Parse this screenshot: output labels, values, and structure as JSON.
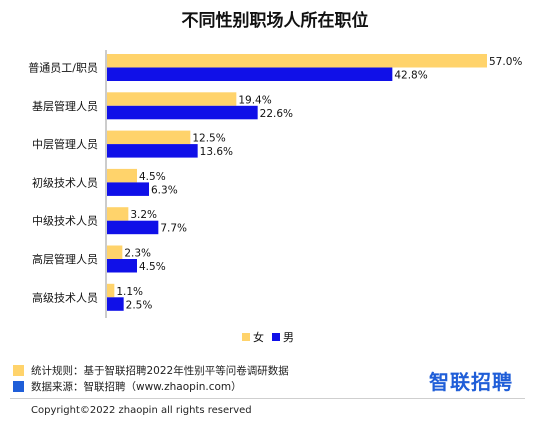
{
  "chart_data": {
    "type": "bar",
    "orientation": "horizontal",
    "title": "不同性别职场人所在职位",
    "categories": [
      "普通员工/职员",
      "基层管理人员",
      "中层管理人员",
      "初级技术人员",
      "中级技术人员",
      "高层管理人员",
      "高级技术人员"
    ],
    "series": [
      {
        "name": "女",
        "color": "#FFD36B",
        "values": [
          57.0,
          19.4,
          12.5,
          4.5,
          3.2,
          2.3,
          1.1
        ],
        "labels": [
          "57.0%",
          "19.4%",
          "12.5%",
          "4.5%",
          "3.2%",
          "2.3%",
          "1.1%"
        ]
      },
      {
        "name": "男",
        "color": "#1010E8",
        "values": [
          42.8,
          22.6,
          13.6,
          6.3,
          7.7,
          4.5,
          2.5
        ],
        "labels": [
          "42.8%",
          "22.6%",
          "13.6%",
          "6.3%",
          "7.7%",
          "4.5%",
          "2.5%"
        ]
      }
    ],
    "xlim": [
      0,
      60
    ],
    "grid": false,
    "legend": "bottom-center"
  },
  "footer": {
    "rule_label": "统计规则：基于智联招聘2022年性别平等问卷调研数据",
    "source_label": "数据来源：智联招聘（www.zhaopin.com）",
    "rule_color": "#FFD36B",
    "source_color": "#1F5ED8",
    "brand": "智联招聘",
    "copyright": "Copyright©2022 zhaopin all rights reserved"
  }
}
